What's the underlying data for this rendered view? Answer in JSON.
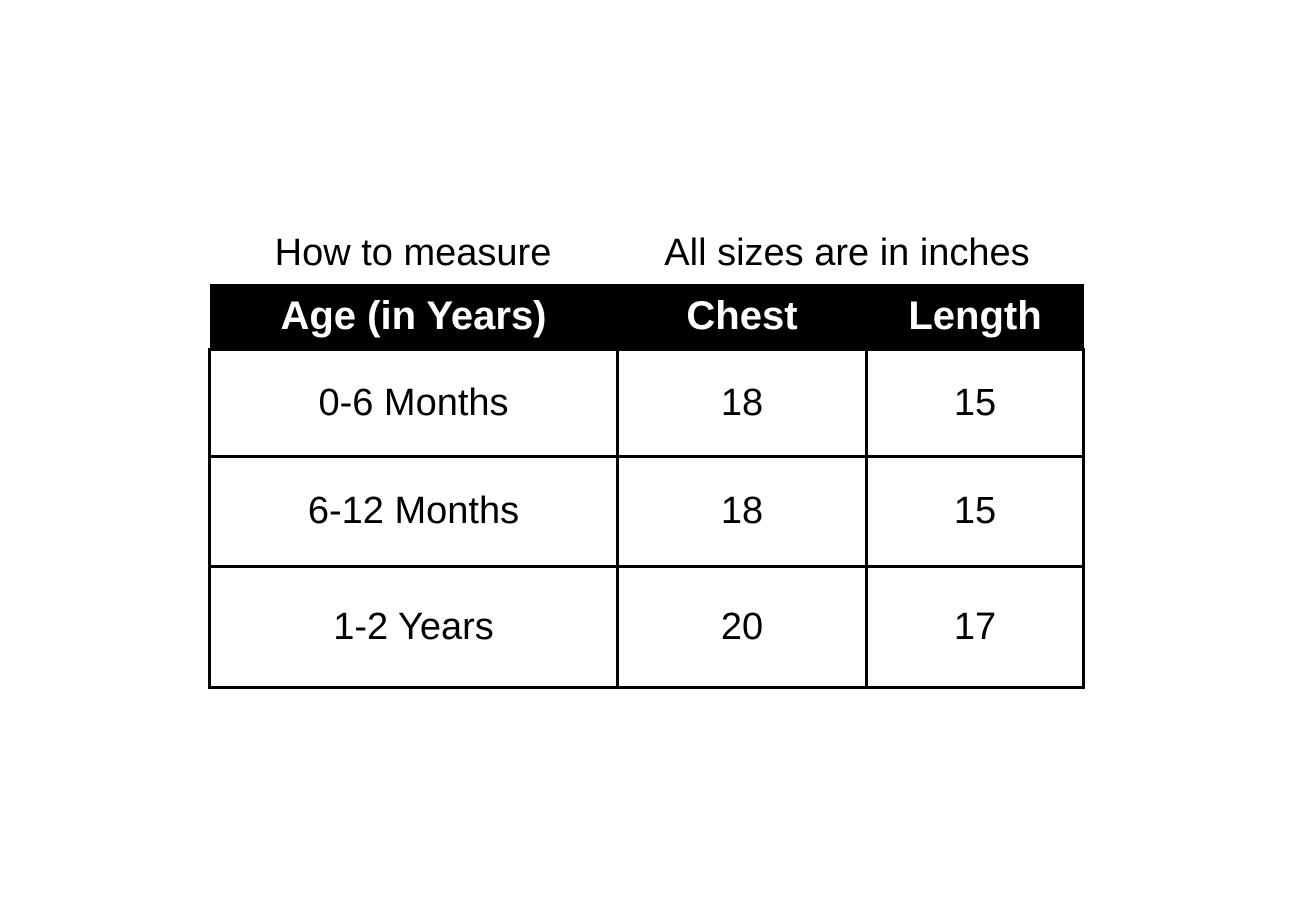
{
  "captions": {
    "left": "How to measure",
    "right": "All sizes are in inches"
  },
  "table": {
    "headers": [
      "Age (in Years)",
      "Chest",
      "Length"
    ],
    "rows": [
      [
        "0-6 Months",
        "18",
        "15"
      ],
      [
        "6-12 Months",
        "18",
        "15"
      ],
      [
        "1-2 Years",
        "20",
        "17"
      ]
    ]
  }
}
